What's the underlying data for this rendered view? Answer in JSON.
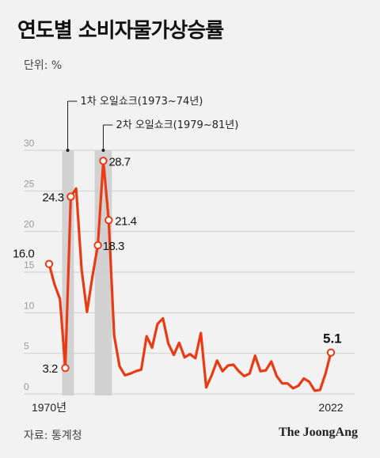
{
  "header": {
    "title": "연도별 소비자물가상승률",
    "unit": "단위: %"
  },
  "footer": {
    "source": "자료: 통계청",
    "brand": "The JoongAng"
  },
  "colors": {
    "line": "#ea3a14",
    "band": "#d2d2d2",
    "grid": "#cfcfcf",
    "marker_fill": "#ffffff"
  },
  "chart_data": {
    "type": "line",
    "title": "연도별 소비자물가상승률",
    "ylabel": "단위: %",
    "ylim": [
      0,
      30
    ],
    "yticks": [
      0,
      5,
      10,
      15,
      20,
      25,
      30
    ],
    "x_tick_labels": [
      {
        "x": 1970,
        "label": "1970년"
      },
      {
        "x": 2022,
        "label": "2022"
      }
    ],
    "grid": true,
    "series": [
      {
        "x": [
          1970,
          1971,
          1972,
          1973,
          1974,
          1975,
          1976,
          1977,
          1978,
          1979,
          1980,
          1981,
          1982,
          1983,
          1984,
          1985,
          1986,
          1987,
          1988,
          1989,
          1990,
          1991,
          1992,
          1993,
          1994,
          1995,
          1996,
          1997,
          1998,
          1999,
          2000,
          2001,
          2002,
          2003,
          2004,
          2005,
          2006,
          2007,
          2008,
          2009,
          2010,
          2011,
          2012,
          2013,
          2014,
          2015,
          2016,
          2017,
          2018,
          2019,
          2020,
          2021,
          2022
        ],
        "values": [
          16.0,
          13.5,
          11.7,
          3.2,
          24.3,
          25.3,
          15.3,
          10.1,
          14.5,
          18.3,
          28.7,
          21.4,
          7.2,
          3.4,
          2.3,
          2.5,
          2.8,
          3.0,
          7.1,
          5.7,
          8.6,
          9.3,
          6.2,
          4.8,
          6.3,
          4.5,
          4.9,
          4.4,
          7.5,
          0.8,
          2.3,
          4.1,
          2.8,
          3.5,
          3.6,
          2.8,
          2.2,
          2.5,
          4.7,
          2.8,
          2.9,
          4.0,
          2.2,
          1.3,
          1.3,
          0.7,
          1.0,
          1.9,
          1.5,
          0.4,
          0.5,
          2.5,
          5.1
        ]
      }
    ],
    "data_labels": [
      {
        "x": 1970,
        "y": 16.0,
        "text": "16.0"
      },
      {
        "x": 1973,
        "y": 3.2,
        "text": "3.2"
      },
      {
        "x": 1974,
        "y": 24.3,
        "text": "24.3"
      },
      {
        "x": 1979,
        "y": 18.3,
        "text": "18.3"
      },
      {
        "x": 1980,
        "y": 28.7,
        "text": "28.7"
      },
      {
        "x": 1981,
        "y": 21.4,
        "text": "21.4"
      },
      {
        "x": 2022,
        "y": 5.1,
        "text": "5.1"
      }
    ],
    "annotations": [
      {
        "text": "1차 오일쇼크(1973~74년)",
        "x_start": 1973,
        "x_end": 1974
      },
      {
        "text": "2차 오일쇼크(1979~81년)",
        "x_start": 1979,
        "x_end": 1981
      }
    ]
  }
}
